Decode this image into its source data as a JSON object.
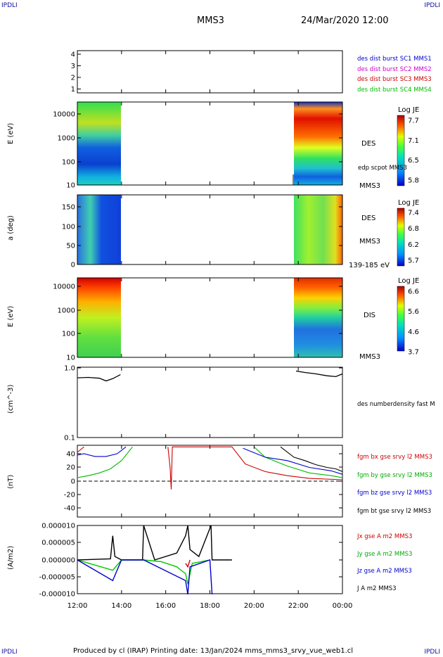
{
  "page": {
    "corner_left": "IPDLI",
    "corner_right": "IPDLI",
    "bottom_corner_left": "IPDLI",
    "bottom_corner_right": "IPDLI",
    "title": "MMS3",
    "datetime": "24/Mar/2020 12:00",
    "footer": "Produced by cl (IRAP)   Printing date: 13/Jan/2024   mms_mms3_srvy_vue_web1.cl"
  },
  "time_axis": [
    "12:00",
    "14:00",
    "16:00",
    "18:00",
    "20:00",
    "22:00",
    "00:00"
  ],
  "panels": {
    "sc": {
      "ticks": [
        "4",
        "3",
        "2",
        "1"
      ],
      "legend": [
        {
          "text": "des dist burst SC1 MMS1",
          "color": "#0000cc"
        },
        {
          "text": "des dist burst SC2 MMS2",
          "color": "#cc00cc"
        },
        {
          "text": "des dist burst SC3 MMS3",
          "color": "#cc0000"
        },
        {
          "text": "des dist burst SC4 MMS4",
          "color": "#00bb00"
        }
      ]
    },
    "des_e": {
      "ylabel": "E (eV)",
      "ticks": [
        "10000",
        "1000",
        "100",
        "10"
      ],
      "side_label": "DES",
      "side_label2": "edp scpot MMS3",
      "side_label3": "MMS3",
      "cbar_title": "Log JE",
      "cbar_ticks": [
        "7.7",
        "7.1",
        "6.5",
        "5.8"
      ]
    },
    "des_pa": {
      "ylabel": "a (deg)",
      "ticks": [
        "150",
        "100",
        "50",
        "0"
      ],
      "side_label": "DES",
      "side_label2": "MMS3",
      "side_label3": "139-185 eV",
      "cbar_title": "Log JE",
      "cbar_ticks": [
        "7.4",
        "6.8",
        "6.2",
        "5.7"
      ]
    },
    "dis_e": {
      "ylabel": "E (eV)",
      "ticks": [
        "10000",
        "1000",
        "100",
        "10"
      ],
      "side_label": "DIS",
      "side_label2": "MMS3",
      "cbar_title": "Log JE",
      "cbar_ticks": [
        "6.6",
        "5.6",
        "4.6",
        "3.7"
      ]
    },
    "density": {
      "ylabel": "(cm^-3)",
      "ticks": [
        "1.0",
        "0.1"
      ],
      "legend": "des numberdensity fast M"
    },
    "bfield": {
      "ylabel": "(nT)",
      "ticks": [
        "40",
        "20",
        "0",
        "-20",
        "-40"
      ],
      "legend": [
        {
          "text": "fgm bx gse srvy l2 MMS3",
          "color": "#cc0000"
        },
        {
          "text": "fgm by gse srvy l2 MMS3",
          "color": "#00aa00"
        },
        {
          "text": "fgm bz gse srvy l2 MMS3",
          "color": "#0000cc"
        },
        {
          "text": "fgm bt gse srvy l2 MMS3",
          "color": "#000000"
        }
      ]
    },
    "current": {
      "ylabel": "(A/m2)",
      "ticks": [
        "0.000010",
        "0.000005",
        "0.000000",
        "-0.000005",
        "-0.000010"
      ],
      "legend": [
        {
          "text": "Jx gse A m2 MMS3",
          "color": "#cc0000"
        },
        {
          "text": "Jy gse A m2 MMS3",
          "color": "#00aa00"
        },
        {
          "text": "Jz gse A m2 MMS3",
          "color": "#0000cc"
        },
        {
          "text": "J A m2 MMS3",
          "color": "#000000"
        }
      ]
    }
  },
  "chart_data": [
    {
      "type": "heatmap",
      "title": "",
      "ylabel": "E (eV)",
      "yscale": "log",
      "ylim": [
        10,
        30000
      ],
      "x_coverage_hours": [
        [
          12.0,
          13.95
        ],
        [
          21.85,
          24.0
        ]
      ],
      "zlabel": "Log JE",
      "zlim": [
        5.8,
        7.7
      ]
    },
    {
      "type": "heatmap",
      "title": "",
      "ylabel": "a (deg)",
      "ylim": [
        0,
        180
      ],
      "x_coverage_hours": [
        [
          12.0,
          13.95
        ],
        [
          21.85,
          24.0
        ]
      ],
      "zlabel": "Log JE",
      "zlim": [
        5.7,
        7.4
      ]
    },
    {
      "type": "heatmap",
      "title": "",
      "ylabel": "E (eV)",
      "yscale": "log",
      "ylim": [
        10,
        30000
      ],
      "x_coverage_hours": [
        [
          12.0,
          13.95
        ],
        [
          21.85,
          24.0
        ]
      ],
      "zlabel": "Log JE",
      "zlim": [
        3.7,
        6.6
      ]
    },
    {
      "type": "line",
      "ylabel": "(cm^-3)",
      "yscale": "log",
      "ylim": [
        0.1,
        1.0
      ],
      "series": [
        {
          "name": "des numberdensity fast M",
          "x": [
            12.0,
            12.5,
            13.0,
            13.3,
            13.6,
            13.95,
            21.9,
            22.3,
            22.8,
            23.3,
            23.7,
            24.0
          ],
          "y": [
            0.72,
            0.73,
            0.71,
            0.65,
            0.7,
            0.8,
            0.9,
            0.86,
            0.82,
            0.77,
            0.75,
            0.82
          ]
        }
      ]
    },
    {
      "type": "line",
      "ylabel": "(nT)",
      "ylim": [
        -50,
        50
      ],
      "series": [
        {
          "name": "fgm bx gse srvy l2 MMS3",
          "x": [
            12.0,
            12.3,
            16.1,
            16.2,
            16.25,
            16.3,
            19.0,
            19.6,
            20.5,
            21.5,
            22.5,
            24.0
          ],
          "y": [
            42,
            50,
            50,
            20,
            -12,
            50,
            50,
            25,
            14,
            8,
            4,
            2
          ]
        },
        {
          "name": "fgm by gse srvy l2 MMS3",
          "x": [
            12.0,
            12.5,
            13.0,
            13.5,
            14.0,
            14.5,
            20.0,
            20.5,
            21.5,
            22.5,
            23.5,
            24.0
          ],
          "y": [
            5,
            8,
            12,
            18,
            30,
            50,
            50,
            35,
            22,
            12,
            8,
            5
          ]
        },
        {
          "name": "fgm bz gse srvy l2 MMS3",
          "x": [
            12.0,
            12.3,
            12.8,
            13.3,
            13.8,
            14.2,
            19.5,
            20.5,
            21.5,
            22.5,
            23.5,
            24.0
          ],
          "y": [
            38,
            40,
            36,
            36,
            40,
            50,
            48,
            35,
            30,
            20,
            15,
            10
          ]
        },
        {
          "name": "fgm bt gse srvy l2 MMS3",
          "x": [
            21.2,
            21.8,
            22.3,
            22.8,
            23.3,
            23.7,
            24.0
          ],
          "y": [
            50,
            35,
            30,
            24,
            20,
            18,
            14
          ]
        }
      ]
    },
    {
      "type": "line",
      "ylabel": "(A/m2)",
      "ylim": [
        -1e-05,
        1e-05
      ],
      "series": [
        {
          "name": "J A m2 MMS3",
          "x": [
            12.0,
            13.5,
            13.6,
            13.7,
            14.0,
            14.95,
            15.0,
            15.5,
            16.5,
            16.9,
            17.0,
            17.1,
            17.5,
            18.05,
            18.1,
            19.0,
            24.0
          ],
          "y": [
            0,
            3e-07,
            7e-06,
            1e-06,
            0,
            0,
            1e-05,
            0,
            2e-06,
            7e-06,
            1e-05,
            3e-06,
            1e-06,
            1e-05,
            0,
            0,
            0
          ]
        },
        {
          "name": "Jy gse A m2 MMS3",
          "x": [
            12.0,
            13.6,
            14.0,
            15.0,
            15.8,
            16.5,
            16.9,
            17.0,
            17.2,
            18.0,
            24.0
          ],
          "y": [
            0,
            -3e-06,
            0,
            0,
            -5e-07,
            -2e-06,
            -4e-06,
            -7e-06,
            -1e-06,
            0,
            0
          ]
        },
        {
          "name": "Jz gse A m2 MMS3",
          "x": [
            12.0,
            13.6,
            14.0,
            15.0,
            16.9,
            17.0,
            17.1,
            18.0,
            18.1,
            24.0
          ],
          "y": [
            0,
            -6e-06,
            0,
            0,
            -6e-06,
            -1e-05,
            -2e-06,
            0,
            -1e-05,
            0
          ]
        },
        {
          "name": "Jx gse A m2 MMS3",
          "x": [
            12.0,
            16.9,
            17.0,
            17.1,
            24.0
          ],
          "y": [
            0,
            -1e-06,
            -2e-06,
            0,
            0
          ]
        }
      ]
    }
  ]
}
